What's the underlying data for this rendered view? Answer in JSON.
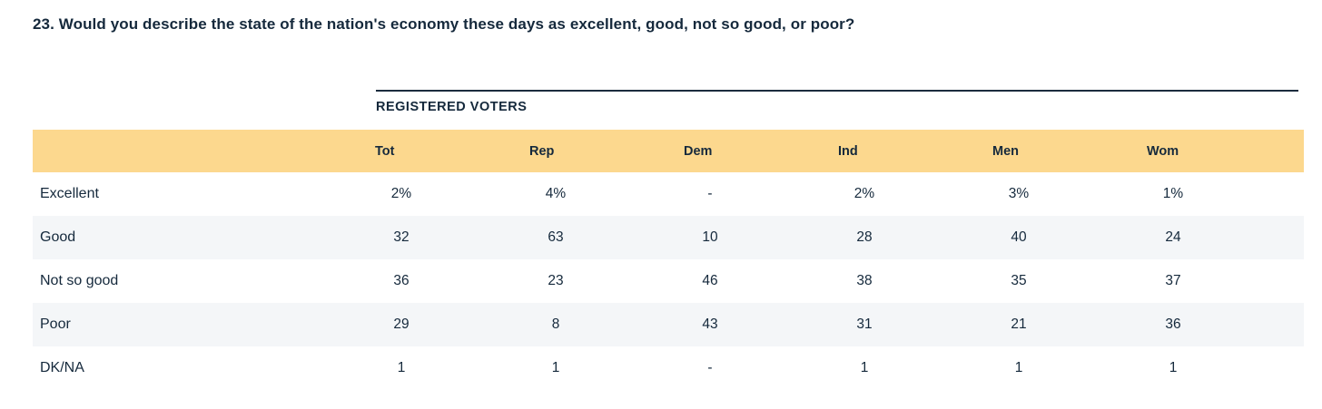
{
  "header": {
    "question": "23. Would you describe the state of the nation's economy these days as excellent, good, not so good, or poor?",
    "section_label": "REGISTERED VOTERS"
  },
  "colors": {
    "header_band": "#FCD88E",
    "alt_row": "#F4F6F8",
    "text": "#15293C",
    "rule_line": "#1B2C3E"
  },
  "chart_data": {
    "type": "table",
    "title": "23. Would you describe the state of the nation's economy these days as excellent, good, not so good, or poor?",
    "group_header": "REGISTERED VOTERS",
    "columns": [
      "Tot",
      "Rep",
      "Dem",
      "Ind",
      "Men",
      "Wom"
    ],
    "rows": [
      {
        "label": "Excellent",
        "values": [
          "2%",
          "4%",
          "-",
          "2%",
          "3%",
          "1%"
        ]
      },
      {
        "label": "Good",
        "values": [
          "32",
          "63",
          "10",
          "28",
          "40",
          "24"
        ]
      },
      {
        "label": "Not so good",
        "values": [
          "36",
          "23",
          "46",
          "38",
          "35",
          "37"
        ]
      },
      {
        "label": "Poor",
        "values": [
          "29",
          "8",
          "43",
          "31",
          "21",
          "36"
        ]
      },
      {
        "label": "DK/NA",
        "values": [
          "1",
          "1",
          "-",
          "1",
          "1",
          "1"
        ]
      }
    ]
  }
}
